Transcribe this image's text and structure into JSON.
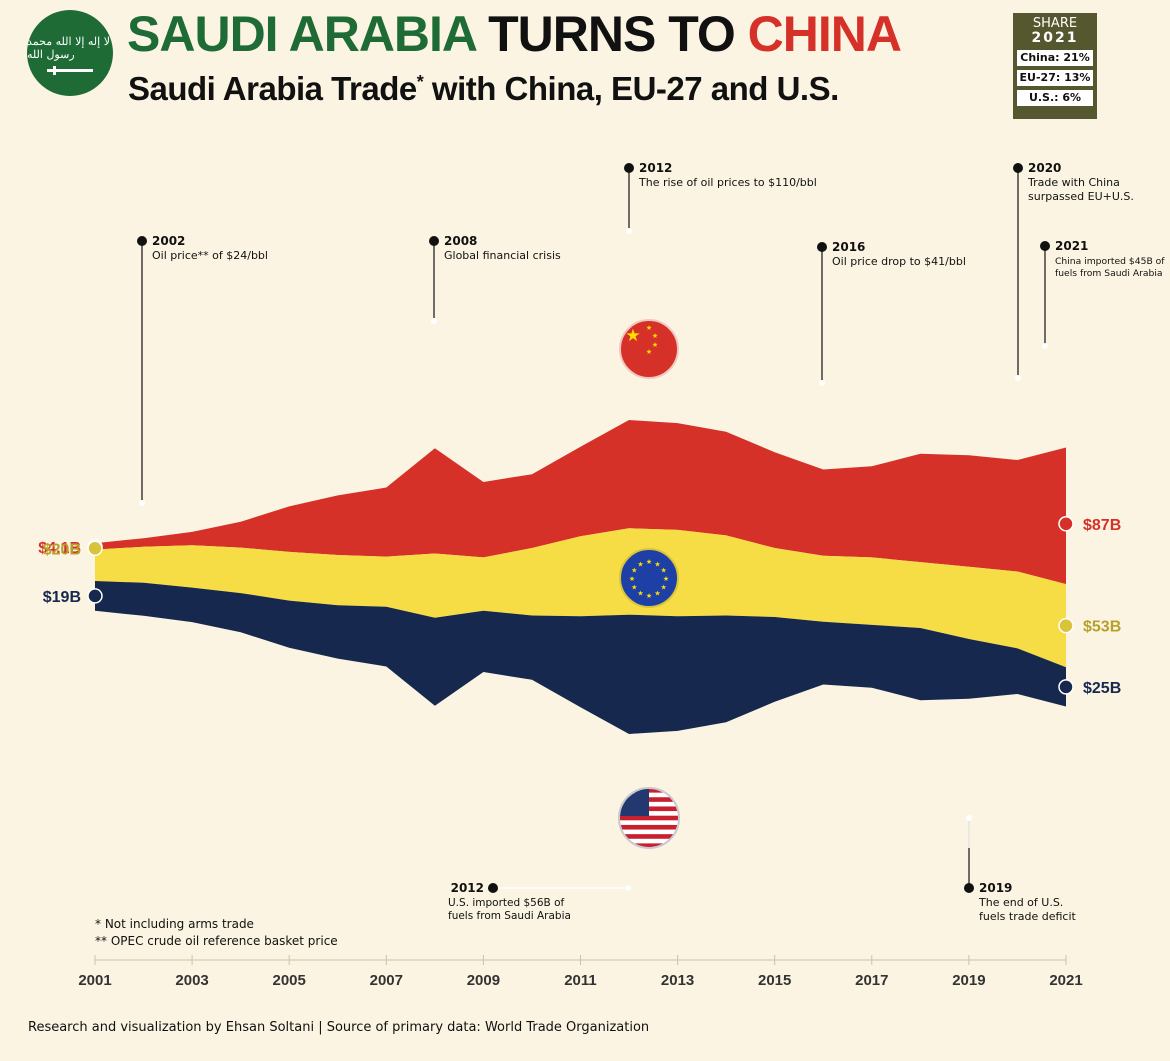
{
  "header": {
    "title_part1": "SAUDI ARABIA",
    "title_part2": "TURNS TO",
    "title_part3": "CHINA",
    "subtitle_before": "Saudi Arabia Trade",
    "subtitle_mark": "*",
    "subtitle_after": " with China, EU-27 and U.S."
  },
  "logo": {
    "icon": "saudi-flag-emblem-icon",
    "script_text": "لا إله إلا الله محمد رسول الله"
  },
  "share_box": {
    "label": "SHARE",
    "year": "2021",
    "rows": [
      "China: 21%",
      "EU-27: 13%",
      "U.S.: 6%"
    ]
  },
  "colors": {
    "china": "#d63129",
    "eu": "#f7dd45",
    "us": "#16284d",
    "background": "#fbf4e2",
    "saudi_green": "#1f6b36"
  },
  "chart_data": {
    "type": "area",
    "stacking": "streamgraph",
    "x": [
      2001,
      2002,
      2003,
      2004,
      2005,
      2006,
      2007,
      2008,
      2009,
      2010,
      2011,
      2012,
      2013,
      2014,
      2015,
      2016,
      2017,
      2018,
      2019,
      2020,
      2021
    ],
    "x_ticks": [
      "2001",
      "2003",
      "2005",
      "2007",
      "2009",
      "2011",
      "2013",
      "2015",
      "2017",
      "2019",
      "2021"
    ],
    "series": [
      {
        "name": "China",
        "color": "#d63129",
        "values": [
          4.1,
          5.4,
          8.5,
          16.5,
          29,
          38,
          44,
          67,
          48,
          47,
          57,
          69,
          68,
          66,
          61,
          55,
          58,
          69,
          71,
          71,
          87
        ]
      },
      {
        "name": "EU-27",
        "color": "#f7dd45",
        "values": [
          20,
          23,
          27,
          29,
          31,
          32,
          32,
          41,
          34,
          43,
          51,
          55,
          55,
          51,
          44,
          42,
          43,
          42,
          46,
          49,
          53
        ]
      },
      {
        "name": "U.S.",
        "color": "#16284d",
        "values": [
          19,
          21,
          22,
          25,
          30,
          34,
          38,
          56,
          39,
          41,
          58,
          76,
          73,
          68,
          54,
          40,
          40,
          46,
          38,
          29,
          25
        ]
      }
    ],
    "start_labels": [
      {
        "series": "China",
        "text": "$4.1B"
      },
      {
        "series": "EU-27",
        "text": "$20B"
      },
      {
        "series": "U.S.",
        "text": "$19B"
      }
    ],
    "end_labels": [
      {
        "series": "China",
        "text": "$87B"
      },
      {
        "series": "EU-27",
        "text": "$53B"
      },
      {
        "series": "U.S.",
        "text": "$25B"
      }
    ],
    "series_icons": [
      "china-flag-icon",
      "eu-flag-icon",
      "us-flag-icon"
    ],
    "annotations": [
      {
        "year": "2002",
        "text": [
          "Oil price** of $24/bbl"
        ]
      },
      {
        "year": "2008",
        "text": [
          "Global financial crisis"
        ]
      },
      {
        "year": "2012",
        "text": [
          "The rise of oil prices to $110/bbl"
        ]
      },
      {
        "year": "2016",
        "text": [
          "Oil price drop to $41/bbl"
        ]
      },
      {
        "year": "2020",
        "text": [
          "Trade with China",
          "surpassed EU+U.S."
        ]
      },
      {
        "year": "2021",
        "text": [
          "China imported $45B of",
          "fuels from Saudi Arabia"
        ]
      },
      {
        "year": "2012",
        "text": [
          "U.S. imported $56B of",
          "fuels from Saudi Arabia"
        ]
      },
      {
        "year": "2019",
        "text": [
          "The end of U.S.",
          "fuels trade deficit"
        ]
      }
    ],
    "grid": false,
    "legend": "none"
  },
  "footnotes": [
    "* Not including arms trade",
    "** OPEC crude oil reference basket price"
  ],
  "credit": "Research and visualization by Ehsan Soltani | Source of primary data: World Trade Organization"
}
